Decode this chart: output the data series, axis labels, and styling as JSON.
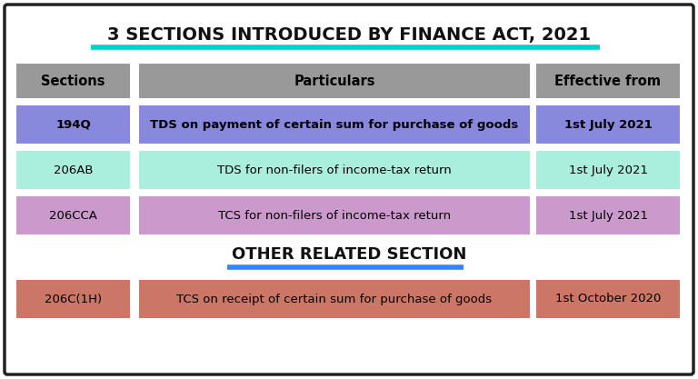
{
  "title1": "3 SECTIONS INTRODUCED BY FINANCE ACT, 2021",
  "title2": "OTHER RELATED SECTION",
  "title1_underline_color": "#00D0D0",
  "title2_underline_color": "#3388EE",
  "bg_color": "#FFFFFF",
  "border_color": "#222222",
  "header_color": "#999999",
  "header_text_color": "#000000",
  "rows": [
    {
      "section": "194Q",
      "particulars": "TDS on payment of certain sum for purchase of goods",
      "effective": "1st July 2021",
      "color": "#8888DD",
      "text_bold": true
    },
    {
      "section": "206AB",
      "particulars": "TDS for non-filers of income-tax return",
      "effective": "1st July 2021",
      "color": "#AAEEDD",
      "text_bold": false
    },
    {
      "section": "206CCA",
      "particulars": "TCS for non-filers of income-tax return",
      "effective": "1st July 2021",
      "color": "#CC99CC",
      "text_bold": false
    }
  ],
  "other_row": {
    "section": "206C(1H)",
    "particulars": "TCS on receipt of certain sum for purchase of goods",
    "effective": "1st October 2020",
    "color": "#CC7766",
    "text_bold": false
  },
  "fig_width": 7.68,
  "fig_height": 4.17,
  "dpi": 100
}
